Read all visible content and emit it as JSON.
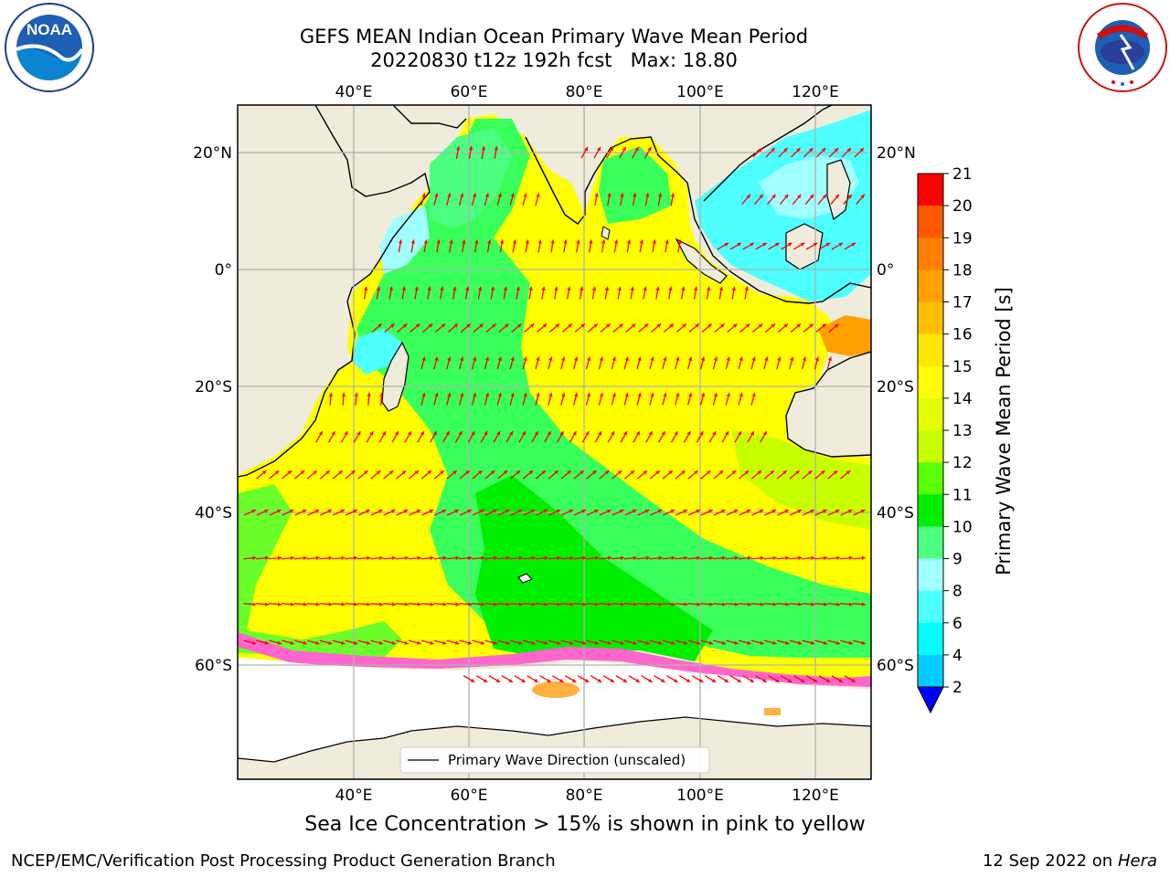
{
  "title": {
    "line1": "GEFS MEAN Indian Ocean Primary Wave Mean Period",
    "line2_date": "20220830 t12z 192h fcst",
    "line2_max": "Max: 18.80"
  },
  "logos": {
    "left": {
      "text": "NOAA",
      "icon": "noaa-logo"
    },
    "right": {
      "text": "NATIONAL WEATHER SERVICE",
      "icon": "nws-logo"
    }
  },
  "map": {
    "lon_labels": [
      "40°E",
      "60°E",
      "80°E",
      "100°E",
      "120°E"
    ],
    "lon_values": [
      40,
      60,
      80,
      100,
      120
    ],
    "lat_labels_left": [
      "20°N",
      "0°",
      "20°S",
      "40°S",
      "60°S"
    ],
    "lat_labels_right": [
      "20°N",
      "0°",
      "20°S",
      "40°S",
      "60°S"
    ],
    "lat_values": [
      20,
      0,
      -20,
      -40,
      -60
    ],
    "lon_range": [
      20,
      130
    ],
    "lat_range": [
      -80,
      28
    ],
    "gridlines": true,
    "legend_entry": "Primary Wave Direction (unscaled)",
    "legend_placement": "bottom-center",
    "arrow_color": "#ff0000",
    "land_color": "#efecdc",
    "ice_region_color": "#ffffff",
    "arrow_rows": [
      {
        "lat": 20,
        "lon_from": 58,
        "lon_to": 66,
        "dir": 80
      },
      {
        "lat": 20,
        "lon_from": 80,
        "lon_to": 92,
        "dir": 60
      },
      {
        "lat": 20,
        "lon_from": 110,
        "lon_to": 128,
        "dir": 45
      },
      {
        "lat": 12,
        "lon_from": 52,
        "lon_to": 72,
        "dir": 75
      },
      {
        "lat": 12,
        "lon_from": 82,
        "lon_to": 96,
        "dir": 80
      },
      {
        "lat": 12,
        "lon_from": 108,
        "lon_to": 128,
        "dir": 50
      },
      {
        "lat": 4,
        "lon_from": 48,
        "lon_to": 98,
        "dir": 80
      },
      {
        "lat": 4,
        "lon_from": 104,
        "lon_to": 128,
        "dir": 30
      },
      {
        "lat": -4,
        "lon_from": 42,
        "lon_to": 110,
        "dir": 80
      },
      {
        "lat": -10,
        "lon_from": 44,
        "lon_to": 124,
        "dir": 40
      },
      {
        "lat": -16,
        "lon_from": 52,
        "lon_to": 124,
        "dir": 75
      },
      {
        "lat": -22,
        "lon_from": 36,
        "lon_to": 46,
        "dir": 85
      },
      {
        "lat": -22,
        "lon_from": 52,
        "lon_to": 110,
        "dir": 75
      },
      {
        "lat": -28,
        "lon_from": 34,
        "lon_to": 112,
        "dir": 60
      },
      {
        "lat": -34,
        "lon_from": 24,
        "lon_to": 126,
        "dir": 40
      },
      {
        "lat": -40,
        "lon_from": 22,
        "lon_to": 128,
        "dir": 25
      },
      {
        "lat": -46,
        "lon_from": 22,
        "lon_to": 128,
        "dir": 5
      },
      {
        "lat": -52,
        "lon_from": 22,
        "lon_to": 128,
        "dir": -5
      },
      {
        "lat": -57,
        "lon_from": 22,
        "lon_to": 128,
        "dir": -15
      },
      {
        "lat": -62,
        "lon_from": 60,
        "lon_to": 128,
        "dir": -30
      }
    ]
  },
  "caption": "Sea Ice Concentration > 15% is shown in pink to yellow",
  "colorbar": {
    "label": "Primary Wave Mean Period [s]",
    "ticks": [
      "21",
      "20",
      "19",
      "18",
      "17",
      "16",
      "15",
      "14",
      "13",
      "12",
      "11",
      "10",
      "9",
      "8",
      "6",
      "4",
      "2"
    ],
    "colors": [
      "#ff0000",
      "#ff3300",
      "#ff5a00",
      "#ff7f00",
      "#ff9f00",
      "#ffbf00",
      "#ffe600",
      "#ffff00",
      "#e6ff00",
      "#c8ff00",
      "#5aff00",
      "#00ee00",
      "#4dff80",
      "#a0ffff",
      "#4dffff",
      "#00ffff",
      "#00ccff",
      "#0070ff"
    ],
    "extend_color": "#0000ff"
  },
  "footer": {
    "left": "NCEP/EMC/Verification Post Processing Product Generation Branch",
    "right_date": "12 Sep 2022 on",
    "right_host": "Hera"
  }
}
